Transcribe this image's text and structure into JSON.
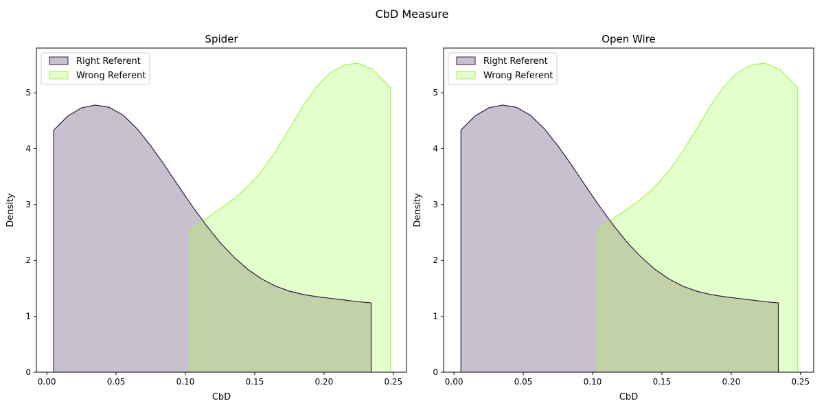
{
  "figure": {
    "suptitle": "CbD Measure"
  },
  "colors": {
    "right_fill": "#c9c0cf",
    "right_line": "#2d1e3e",
    "wrong_fill": "#e2ffcc",
    "wrong_line": "#a5f24a",
    "overlap_fill": "#c3d1a9"
  },
  "chart_data": [
    {
      "type": "area",
      "title": "Spider",
      "xlabel": "CbD",
      "ylabel": "Density",
      "xlim": [
        -0.0075,
        0.2595
      ],
      "ylim": [
        0,
        5.8
      ],
      "xticks": [
        0.0,
        0.05,
        0.1,
        0.15,
        0.2,
        0.25
      ],
      "xtick_labels": [
        "0.00",
        "0.05",
        "0.10",
        "0.15",
        "0.20",
        "0.25"
      ],
      "yticks": [
        0,
        1,
        2,
        3,
        4,
        5
      ],
      "ytick_labels": [
        "0",
        "1",
        "2",
        "3",
        "4",
        "5"
      ],
      "grid": false,
      "legend": "top-left",
      "series": [
        {
          "name": "Right Referent",
          "x": [
            0.005,
            0.015,
            0.025,
            0.035,
            0.045,
            0.055,
            0.065,
            0.075,
            0.085,
            0.095,
            0.105,
            0.115,
            0.125,
            0.135,
            0.145,
            0.155,
            0.165,
            0.175,
            0.185,
            0.195,
            0.205,
            0.215,
            0.225,
            0.234
          ],
          "y": [
            4.33,
            4.58,
            4.73,
            4.78,
            4.74,
            4.6,
            4.36,
            4.05,
            3.7,
            3.33,
            2.97,
            2.63,
            2.32,
            2.06,
            1.84,
            1.67,
            1.54,
            1.45,
            1.39,
            1.35,
            1.32,
            1.29,
            1.26,
            1.24
          ]
        },
        {
          "name": "Wrong Referent",
          "x": [
            0.104,
            0.115,
            0.125,
            0.135,
            0.145,
            0.155,
            0.165,
            0.175,
            0.185,
            0.195,
            0.205,
            0.215,
            0.224,
            0.235,
            0.248
          ],
          "y": [
            2.55,
            2.75,
            2.92,
            3.1,
            3.32,
            3.6,
            3.95,
            4.35,
            4.77,
            5.12,
            5.37,
            5.5,
            5.53,
            5.42,
            5.09
          ]
        }
      ]
    },
    {
      "type": "area",
      "title": "Open Wire",
      "xlabel": "CbD",
      "ylabel": "Density",
      "xlim": [
        -0.0075,
        0.2595
      ],
      "ylim": [
        0,
        5.8
      ],
      "xticks": [
        0.0,
        0.05,
        0.1,
        0.15,
        0.2,
        0.25
      ],
      "xtick_labels": [
        "0.00",
        "0.05",
        "0.10",
        "0.15",
        "0.20",
        "0.25"
      ],
      "yticks": [
        0,
        1,
        2,
        3,
        4,
        5
      ],
      "ytick_labels": [
        "0",
        "1",
        "2",
        "3",
        "4",
        "5"
      ],
      "grid": false,
      "legend": "top-left",
      "series": [
        {
          "name": "Right Referent",
          "x": [
            0.005,
            0.015,
            0.025,
            0.035,
            0.045,
            0.055,
            0.065,
            0.075,
            0.085,
            0.095,
            0.105,
            0.115,
            0.125,
            0.135,
            0.145,
            0.155,
            0.165,
            0.175,
            0.185,
            0.195,
            0.205,
            0.215,
            0.225,
            0.234
          ],
          "y": [
            4.33,
            4.58,
            4.73,
            4.78,
            4.74,
            4.6,
            4.36,
            4.05,
            3.7,
            3.33,
            2.97,
            2.63,
            2.32,
            2.06,
            1.84,
            1.67,
            1.54,
            1.45,
            1.39,
            1.35,
            1.32,
            1.29,
            1.26,
            1.24
          ]
        },
        {
          "name": "Wrong Referent",
          "x": [
            0.104,
            0.115,
            0.125,
            0.135,
            0.145,
            0.155,
            0.165,
            0.175,
            0.185,
            0.195,
            0.205,
            0.215,
            0.224,
            0.235,
            0.248
          ],
          "y": [
            2.55,
            2.75,
            2.92,
            3.1,
            3.32,
            3.6,
            3.95,
            4.35,
            4.77,
            5.12,
            5.37,
            5.5,
            5.53,
            5.42,
            5.09
          ]
        }
      ]
    }
  ]
}
